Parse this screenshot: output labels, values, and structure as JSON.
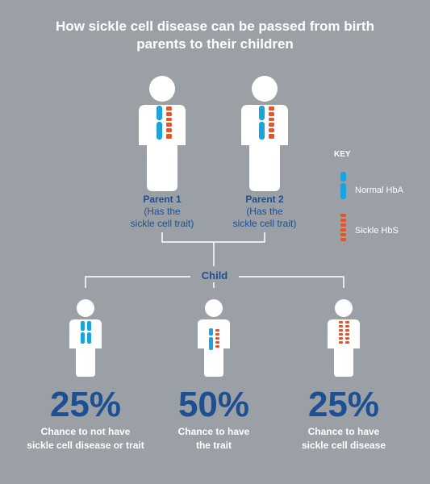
{
  "title": {
    "line1": "How sickle cell disease can be passed from birth",
    "line2": "parents to their children"
  },
  "parents": [
    {
      "name": "Parent 1",
      "sub1": "(Has the",
      "sub2": "sickle cell trait)"
    },
    {
      "name": "Parent 2",
      "sub1": "(Has the",
      "sub2": "sickle cell trait)"
    }
  ],
  "key": {
    "title": "KEY",
    "normal": "Normal HbA",
    "sickle": "Sickle HbS"
  },
  "child_label": "Child",
  "children": [
    {
      "percent": "25%",
      "desc1": "Chance to not have",
      "desc2": "sickle cell disease or trait"
    },
    {
      "percent": "50%",
      "desc1": "Chance to have",
      "desc2": "the trait"
    },
    {
      "percent": "25%",
      "desc1": "Chance to have",
      "desc2": "sickle cell disease"
    }
  ],
  "colors": {
    "background": "#9aa0a6",
    "text_blue": "#1d4f91",
    "normal_hba": "#1aa3dc",
    "sickle_hbs": "#e8532a"
  }
}
